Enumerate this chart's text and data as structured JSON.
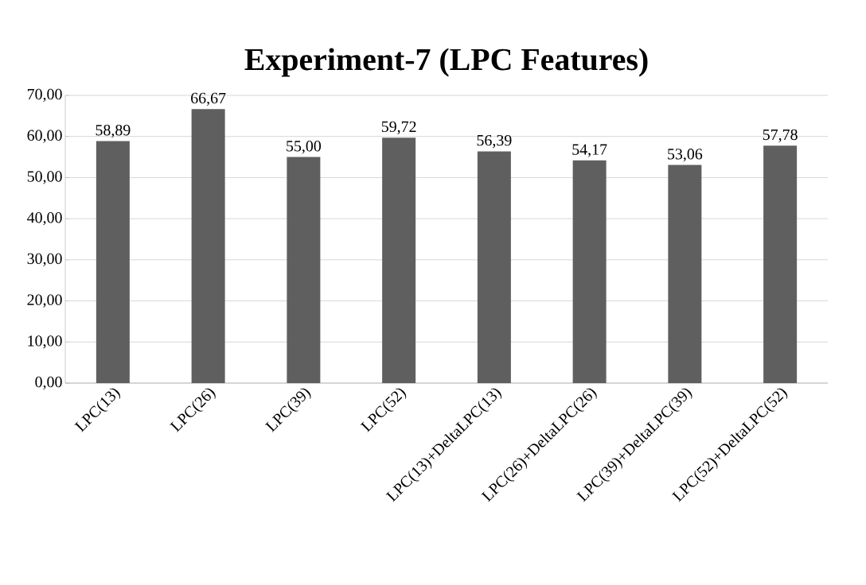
{
  "chart_data": {
    "type": "bar",
    "title": "Experiment-7 (LPC Features)",
    "categories": [
      "LPC(13)",
      "LPC(26)",
      "LPC(39)",
      "LPC(52)",
      "LPC(13)+DeltaLPC(13)",
      "LPC(26)+DeltaLPC(26)",
      "LPC(39)+DeltaLPC(39)",
      "LPC(52)+DeltaLPC(52)"
    ],
    "values": [
      58.89,
      66.67,
      55.0,
      59.72,
      56.39,
      54.17,
      53.06,
      57.78
    ],
    "value_labels": [
      "58,89",
      "66,67",
      "55,00",
      "59,72",
      "56,39",
      "54,17",
      "53,06",
      "57,78"
    ],
    "color": "#5f5f5f",
    "ylim": [
      0,
      70
    ],
    "yticks": [
      {
        "value": 0,
        "label": "0,00"
      },
      {
        "value": 10,
        "label": "10,00"
      },
      {
        "value": 20,
        "label": "20,00"
      },
      {
        "value": 30,
        "label": "30,00"
      },
      {
        "value": 40,
        "label": "40,00"
      },
      {
        "value": 50,
        "label": "50,00"
      },
      {
        "value": 60,
        "label": "60,00"
      },
      {
        "value": 70,
        "label": "70,00"
      }
    ],
    "grid": "y"
  }
}
